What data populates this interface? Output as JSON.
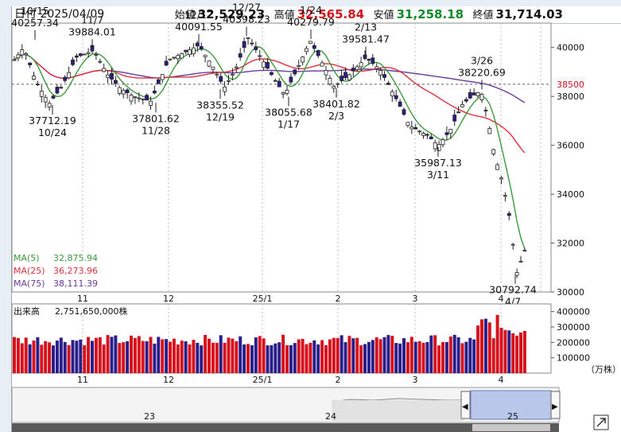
{
  "header": {
    "date_label": "日付",
    "date": "2025/04/09",
    "open_label": "始値",
    "open": "32,529.23",
    "high_label": "高値",
    "high": "32,565.84",
    "low_label": "安値",
    "low": "31,258.18",
    "close_label": "終値",
    "close": "31,714.03"
  },
  "colors": {
    "up": "#d8121c",
    "down": "#0f8a2a",
    "ma5": "#3c9a3c",
    "ma25": "#e0303c",
    "ma75": "#6a3c9c",
    "candle": "#2a1f8a",
    "vol_up": "#d8121c",
    "vol_down": "#2a1f8a"
  },
  "chart_data": [
    {
      "type": "candlestick",
      "ylim": [
        30000,
        41000
      ],
      "yticks": [
        "40000",
        "38000",
        "36000",
        "34000",
        "32000",
        "30000"
      ],
      "price_marker": "38500",
      "month_ticks": [
        "11",
        "12",
        "25/1",
        "2",
        "3",
        "4"
      ],
      "ma_legend": [
        {
          "name": "MA(5)",
          "value": "32,875.94",
          "color": "#3c9a3c"
        },
        {
          "name": "MA(25)",
          "value": "36,273.96",
          "color": "#e0303c"
        },
        {
          "name": "MA(75)",
          "value": "38,111.39",
          "color": "#6a3c9c"
        }
      ],
      "annotations": [
        {
          "date": "10/15",
          "value": "40257.34",
          "kind": "high"
        },
        {
          "date": "10/24",
          "value": "37712.19",
          "kind": "low"
        },
        {
          "date": "11/7",
          "value": "39884.01",
          "kind": "high"
        },
        {
          "date": "11/28",
          "value": "37801.62",
          "kind": "low"
        },
        {
          "date": "12/12",
          "value": "40091.55",
          "kind": "high"
        },
        {
          "date": "12/19",
          "value": "38355.52",
          "kind": "low"
        },
        {
          "date": "12/27",
          "value": "40398.23",
          "kind": "high"
        },
        {
          "date": "1/17",
          "value": "38055.68",
          "kind": "low"
        },
        {
          "date": "1/24",
          "value": "40279.79",
          "kind": "high"
        },
        {
          "date": "2/3",
          "value": "38401.82",
          "kind": "low"
        },
        {
          "date": "2/13",
          "value": "39581.47",
          "kind": "high"
        },
        {
          "date": "3/11",
          "value": "35987.13",
          "kind": "low"
        },
        {
          "date": "3/26",
          "value": "38220.69",
          "kind": "high"
        },
        {
          "date": "4/7",
          "value": "30792.74",
          "kind": "low"
        }
      ]
    },
    {
      "type": "bar",
      "title": "出来高",
      "total": "2,751,650,000株",
      "ylim": [
        0,
        450000
      ],
      "yticks": [
        "400000",
        "300000",
        "200000",
        "100000"
      ],
      "unit": "（万株）",
      "month_ticks": [
        "11",
        "12",
        "25/1",
        "2",
        "3",
        "4"
      ]
    }
  ],
  "navigator": {
    "labels": [
      "23",
      "24",
      "25"
    ]
  }
}
